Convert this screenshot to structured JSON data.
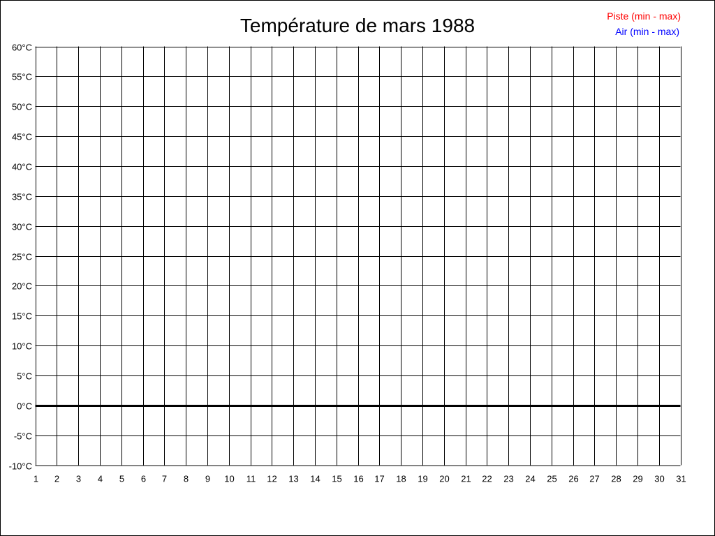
{
  "chart_data": {
    "type": "line",
    "title": "Température de mars 1988",
    "xlabel": "",
    "ylabel": "",
    "x_ticks": [
      "1",
      "2",
      "3",
      "4",
      "5",
      "6",
      "7",
      "8",
      "9",
      "10",
      "11",
      "12",
      "13",
      "14",
      "15",
      "16",
      "17",
      "18",
      "19",
      "20",
      "21",
      "22",
      "23",
      "24",
      "25",
      "26",
      "27",
      "28",
      "29",
      "30",
      "31"
    ],
    "xlim": [
      1,
      31
    ],
    "y_ticks": [
      {
        "value": 60,
        "label": "60°C"
      },
      {
        "value": 55,
        "label": "55°C"
      },
      {
        "value": 50,
        "label": "50°C"
      },
      {
        "value": 45,
        "label": "45°C"
      },
      {
        "value": 40,
        "label": "40°C"
      },
      {
        "value": 35,
        "label": "35°C"
      },
      {
        "value": 30,
        "label": "30°C"
      },
      {
        "value": 25,
        "label": "25°C"
      },
      {
        "value": 20,
        "label": "20°C"
      },
      {
        "value": 15,
        "label": "15°C"
      },
      {
        "value": 10,
        "label": "10°C"
      },
      {
        "value": 5,
        "label": "5°C"
      },
      {
        "value": 0,
        "label": "0°C"
      },
      {
        "value": -5,
        "label": "-5°C"
      },
      {
        "value": -10,
        "label": "-10°C"
      }
    ],
    "ylim": [
      -10,
      60
    ],
    "grid": true,
    "legend_placement": "top-right",
    "series": [
      {
        "name": "Piste (min - max)",
        "color": "#ff0000",
        "values": []
      },
      {
        "name": "Air (min - max)",
        "color": "#0000ff",
        "values": []
      }
    ]
  }
}
